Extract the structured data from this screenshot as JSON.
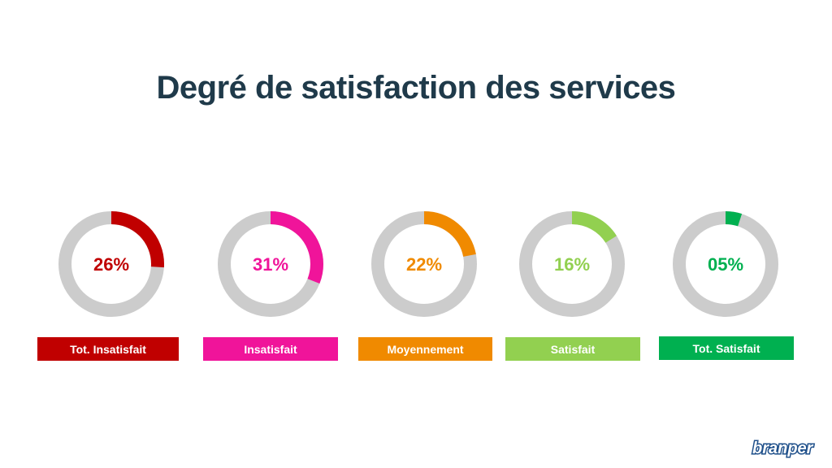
{
  "title": "Degré de satisfaction des services",
  "brand": {
    "text": "branper",
    "color": "#1e4f8a"
  },
  "chart_data": {
    "type": "donut",
    "title": "Degré de satisfaction des services",
    "track_color": "#cccccc",
    "items": [
      {
        "label": "Tot. Insatisfait",
        "value": 26,
        "display": "26%",
        "color": "#c00000"
      },
      {
        "label": "Insatisfait",
        "value": 31,
        "display": "31%",
        "color": "#f0149a"
      },
      {
        "label": "Moyennement",
        "value": 22,
        "display": "22%",
        "color": "#f08a00"
      },
      {
        "label": "Satisfait",
        "value": 16,
        "display": "16%",
        "color": "#92d050"
      },
      {
        "label": "Tot. Satisfait",
        "value": 5,
        "display": "05%",
        "color": "#00b050"
      }
    ]
  }
}
